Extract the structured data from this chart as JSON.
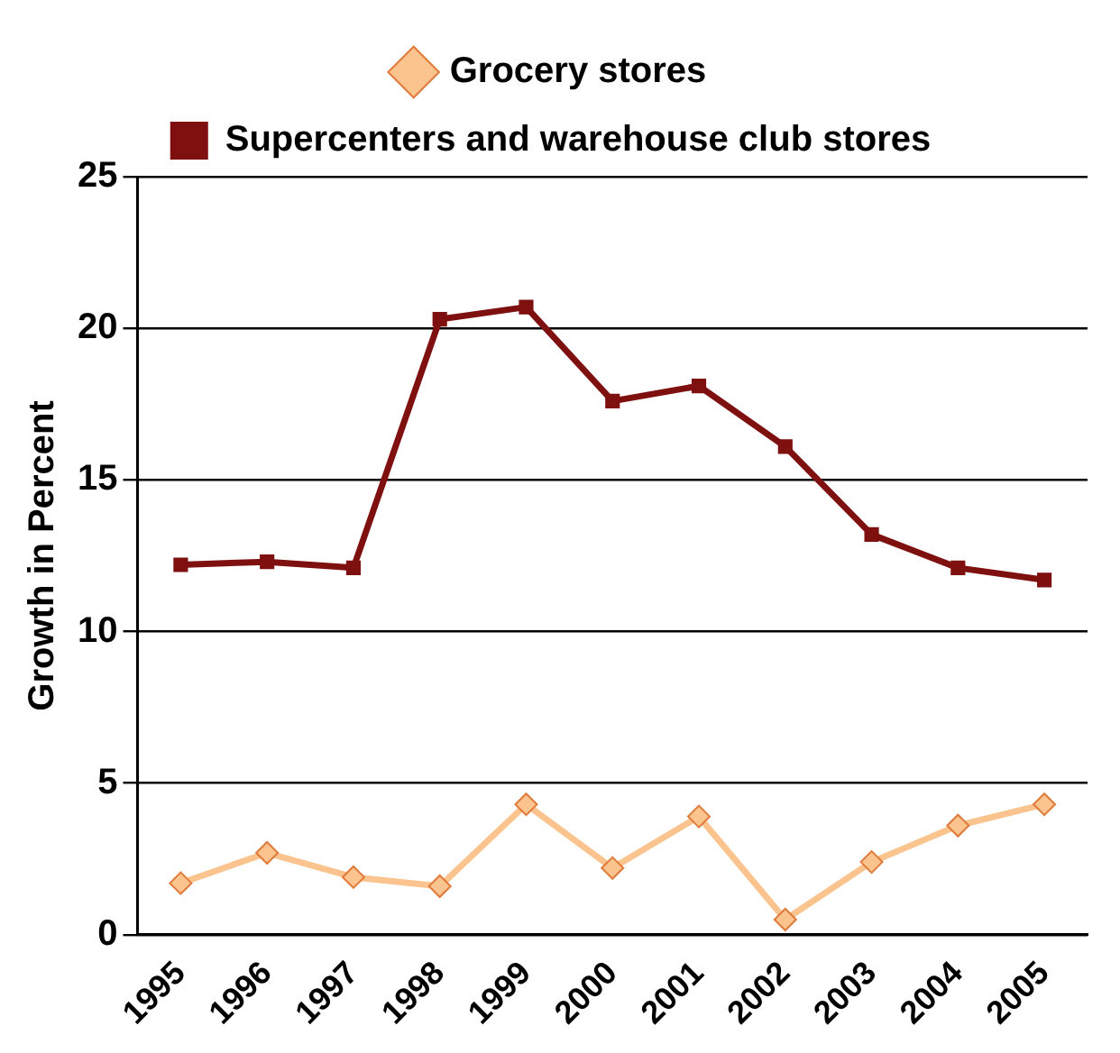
{
  "chart_data": {
    "type": "line",
    "ylabel": "Growth in Percent",
    "categories": [
      "1995",
      "1996",
      "1997",
      "1998",
      "1999",
      "2000",
      "2001",
      "2002",
      "2003",
      "2004",
      "2005"
    ],
    "series": [
      {
        "name": "Grocery stores",
        "color": "#fbc48f",
        "marker": "diamond",
        "values": [
          1.7,
          2.7,
          1.9,
          1.6,
          4.3,
          2.2,
          3.9,
          0.5,
          2.4,
          3.6,
          4.3
        ]
      },
      {
        "name": "Supercenters and warehouse club stores",
        "color": "#7f1010",
        "marker": "square",
        "values": [
          12.2,
          12.3,
          12.1,
          20.3,
          20.7,
          17.6,
          18.1,
          16.1,
          13.2,
          12.1,
          11.7
        ]
      }
    ],
    "ylim": [
      0,
      25
    ],
    "yticks": [
      0,
      5,
      10,
      15,
      20,
      25
    ],
    "grid": "y",
    "legend": "top",
    "line_style": "solid"
  }
}
